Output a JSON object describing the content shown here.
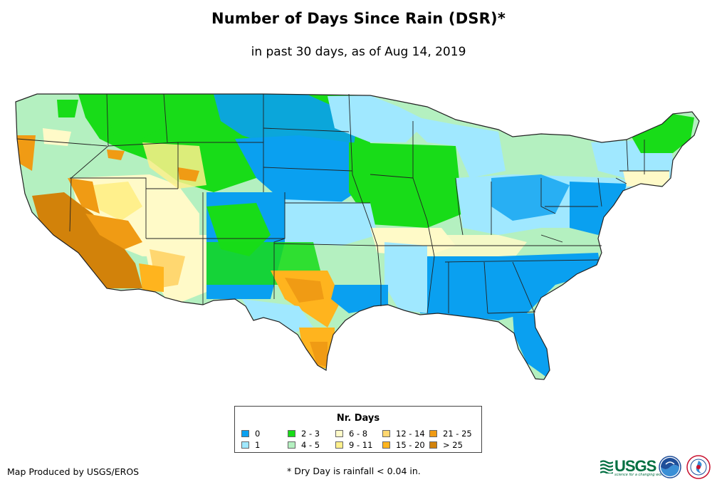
{
  "title": "Number of Days Since Rain (DSR)*",
  "subtitle": "in past 30 days, as of Aug 14, 2019",
  "legend": {
    "title": "Nr. Days",
    "items": [
      {
        "label": "0",
        "color": "#0aa0f0"
      },
      {
        "label": "1",
        "color": "#a0e8ff"
      },
      {
        "label": "2 - 3",
        "color": "#18dc18"
      },
      {
        "label": "4 - 5",
        "color": "#b4f0c0"
      },
      {
        "label": "6 - 8",
        "color": "#fffac8"
      },
      {
        "label": "9 - 11",
        "color": "#fff08c"
      },
      {
        "label": "12 - 14",
        "color": "#ffd770"
      },
      {
        "label": "15 - 20",
        "color": "#ffb41e"
      },
      {
        "label": "21 - 25",
        "color": "#f09b14"
      },
      {
        "label": "> 25",
        "color": "#d2820a"
      }
    ]
  },
  "credit": "Map Produced by USGS/EROS",
  "footnote": "* Dry Day is rainfall < 0.04 in.",
  "logos": {
    "usgs_word": "USGS",
    "usgs_tagline": "science for a changing world"
  }
}
